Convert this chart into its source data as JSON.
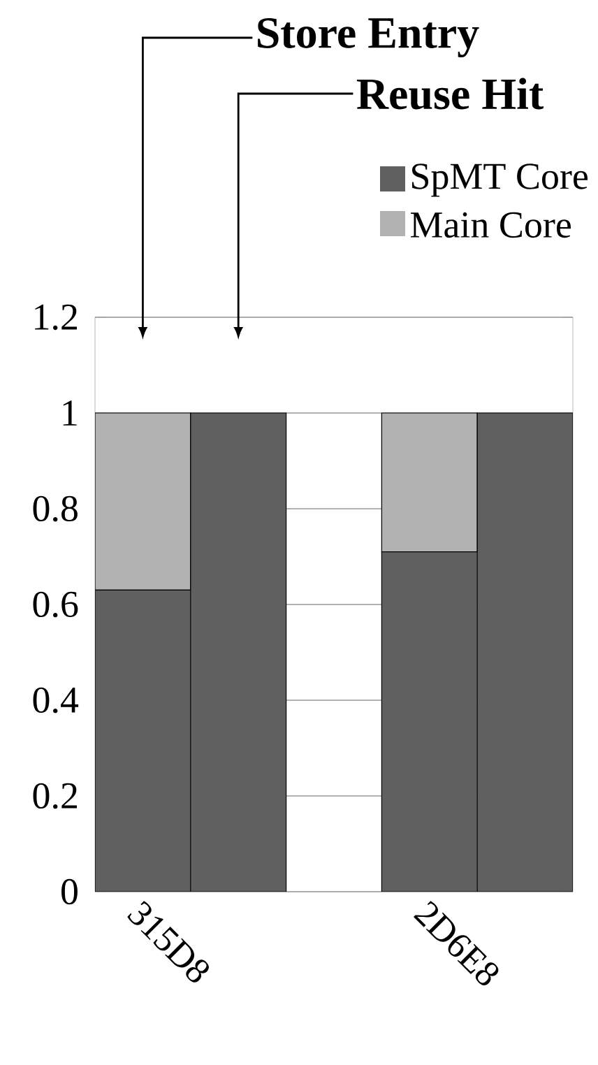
{
  "chart_data": {
    "type": "bar",
    "stacked": true,
    "categories": [
      "315D8",
      null,
      null,
      "2D6E8",
      null
    ],
    "series": [
      {
        "name": "SpMT Core",
        "color": "#606060",
        "values": [
          0.63,
          1,
          null,
          0.71,
          1
        ]
      },
      {
        "name": "Main Core",
        "color": "#b2b2b2",
        "values": [
          0.37,
          0,
          null,
          0.29,
          0
        ]
      }
    ],
    "ylim": [
      0,
      1.2
    ],
    "yticks": [
      0,
      0.2,
      0.4,
      0.6,
      0.8,
      1,
      1.2
    ],
    "grid": "y",
    "legend": "top right",
    "annotations": [
      "Store Entry",
      "Reuse Hit"
    ]
  }
}
